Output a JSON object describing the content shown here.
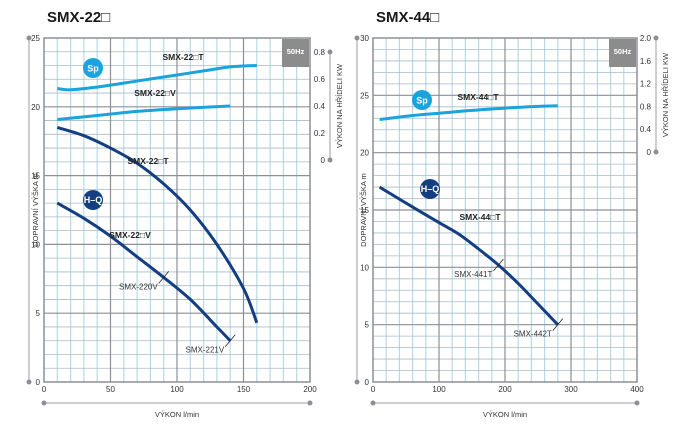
{
  "chart_data": [
    {
      "type": "line",
      "title": "SMX-22□",
      "frequency_badge": "50Hz",
      "xlabel": "VÝKON  l/min",
      "ylabel": "DOPRAVNÍ VÝŠKA  m",
      "y2label": "VÝKON NA HŘÍDELI  KW",
      "xlim": [
        0,
        200
      ],
      "ylim": [
        0,
        25
      ],
      "y2lim": [
        0,
        0.8
      ],
      "xticks": [
        "0",
        "50",
        "100",
        "150",
        "200"
      ],
      "xtick_values": [
        0,
        50,
        100,
        150,
        200
      ],
      "yticks": [
        "0",
        "5",
        "10",
        "15",
        "20",
        "25"
      ],
      "ytick_values": [
        0,
        5,
        10,
        15,
        20,
        25
      ],
      "y2ticks": [
        "0",
        "0.2",
        "0.4",
        "0.6",
        "0.8"
      ],
      "y2tick_values": [
        0,
        0.2,
        0.4,
        0.6,
        0.8
      ],
      "grid": true,
      "badges": {
        "sp": "Sp",
        "hq": "H–Q"
      },
      "series": [
        {
          "name": "SMX-22□T",
          "kind": "H-Q",
          "axis": "left",
          "x": [
            10,
            30,
            50,
            70,
            90,
            110,
            130,
            150,
            160
          ],
          "y": [
            18.5,
            17.9,
            17.0,
            15.9,
            14.4,
            12.5,
            10.0,
            6.8,
            4.3
          ]
        },
        {
          "name": "SMX-22□V",
          "kind": "H-Q",
          "axis": "left",
          "x": [
            10,
            30,
            50,
            70,
            90,
            110,
            130,
            140
          ],
          "y": [
            13.0,
            11.9,
            10.6,
            9.1,
            7.6,
            6.0,
            4.0,
            3.0
          ]
        },
        {
          "name": "SMX-22□T",
          "kind": "Sp",
          "axis": "right",
          "x": [
            10,
            20,
            40,
            60,
            80,
            100,
            120,
            140,
            160
          ],
          "y": [
            0.53,
            0.52,
            0.54,
            0.57,
            0.6,
            0.63,
            0.66,
            0.69,
            0.7
          ]
        },
        {
          "name": "SMX-22□V",
          "kind": "Sp",
          "axis": "right",
          "x": [
            10,
            40,
            70,
            100,
            140
          ],
          "y": [
            0.3,
            0.33,
            0.36,
            0.38,
            0.4
          ]
        }
      ],
      "annotations": [
        {
          "text": "SMX-220V",
          "x": 90,
          "y": 7.6
        },
        {
          "text": "SMX-221V",
          "x": 140,
          "y": 3.0
        }
      ]
    },
    {
      "type": "line",
      "title": "SMX-44□",
      "frequency_badge": "50Hz",
      "xlabel": "VÝKON  l/min",
      "ylabel": "DOPRAVNÍ VÝŠKA  m",
      "y2label": "VÝKON NA HŘÍDELI  KW",
      "xlim": [
        0,
        400
      ],
      "ylim": [
        0,
        30
      ],
      "y2lim": [
        0,
        2.0
      ],
      "xticks": [
        "0",
        "100",
        "200",
        "300",
        "400"
      ],
      "xtick_values": [
        0,
        100,
        200,
        300,
        400
      ],
      "yticks": [
        "0",
        "5",
        "10",
        "15",
        "20",
        "25",
        "30"
      ],
      "ytick_values": [
        0,
        5,
        10,
        15,
        20,
        25,
        30
      ],
      "y2ticks": [
        "0",
        "0.4",
        "0.8",
        "1.2",
        "1.6",
        "2.0"
      ],
      "y2tick_values": [
        0,
        0.4,
        0.8,
        1.2,
        1.6,
        2.0
      ],
      "grid": true,
      "badges": {
        "sp": "Sp",
        "hq": "H–Q"
      },
      "series": [
        {
          "name": "SMX-44□T",
          "kind": "H-Q",
          "axis": "left",
          "x": [
            10,
            50,
            100,
            130,
            160,
            190,
            220,
            250,
            280
          ],
          "y": [
            17.0,
            15.6,
            13.9,
            12.9,
            11.6,
            10.2,
            8.6,
            6.8,
            5.0
          ]
        },
        {
          "name": "SMX-44□T",
          "kind": "Sp",
          "axis": "right",
          "x": [
            10,
            60,
            100,
            150,
            200,
            250,
            280
          ],
          "y": [
            0.57,
            0.64,
            0.68,
            0.73,
            0.77,
            0.8,
            0.81
          ]
        }
      ],
      "annotations": [
        {
          "text": "SMX-441T",
          "x": 190,
          "y": 10.2
        },
        {
          "text": "SMX-442T",
          "x": 280,
          "y": 5.0
        }
      ]
    }
  ]
}
